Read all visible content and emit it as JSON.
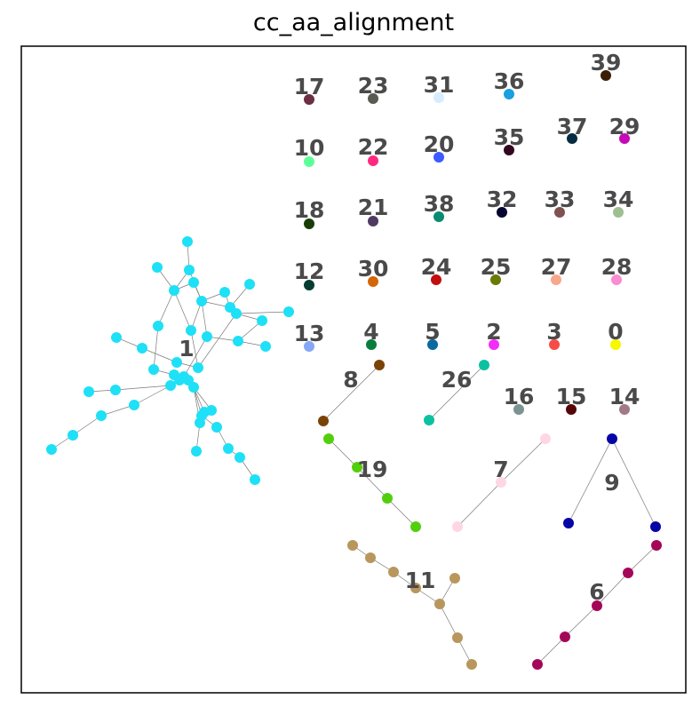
{
  "title": "cc_aa_alignment",
  "components": [
    {
      "label": "1",
      "color": "#1ee0f6"
    },
    {
      "label": "17",
      "color": "#6c2f45"
    },
    {
      "label": "23",
      "color": "#5a5a52"
    },
    {
      "label": "31",
      "color": "#d6ecff"
    },
    {
      "label": "36",
      "color": "#1a9fe0"
    },
    {
      "label": "39",
      "color": "#3a1f06"
    },
    {
      "label": "10",
      "color": "#5cff97"
    },
    {
      "label": "22",
      "color": "#ff2a7f"
    },
    {
      "label": "20",
      "color": "#3c5cff"
    },
    {
      "label": "35",
      "color": "#33071e"
    },
    {
      "label": "37",
      "color": "#062c43"
    },
    {
      "label": "29",
      "color": "#c509b8"
    },
    {
      "label": "18",
      "color": "#193d06"
    },
    {
      "label": "21",
      "color": "#4f3b61"
    },
    {
      "label": "38",
      "color": "#0b8a72"
    },
    {
      "label": "32",
      "color": "#05052f"
    },
    {
      "label": "33",
      "color": "#7f5151"
    },
    {
      "label": "34",
      "color": "#9ebf92"
    },
    {
      "label": "12",
      "color": "#053d33"
    },
    {
      "label": "30",
      "color": "#d46607"
    },
    {
      "label": "24",
      "color": "#c20e0e"
    },
    {
      "label": "25",
      "color": "#6b7a06"
    },
    {
      "label": "27",
      "color": "#f7a78b"
    },
    {
      "label": "28",
      "color": "#fa8cd1"
    },
    {
      "label": "13",
      "color": "#85a8f5"
    },
    {
      "label": "4",
      "color": "#087d3e"
    },
    {
      "label": "5",
      "color": "#0a69a0"
    },
    {
      "label": "2",
      "color": "#f42cf7"
    },
    {
      "label": "3",
      "color": "#f74c45"
    },
    {
      "label": "0",
      "color": "#f7f700"
    },
    {
      "label": "8",
      "color": "#7a4306"
    },
    {
      "label": "26",
      "color": "#0cc1a1"
    },
    {
      "label": "16",
      "color": "#7b9393"
    },
    {
      "label": "15",
      "color": "#560609"
    },
    {
      "label": "14",
      "color": "#a07a89"
    },
    {
      "label": "19",
      "color": "#52cf0c"
    },
    {
      "label": "7",
      "color": "#ffd6e4"
    },
    {
      "label": "9",
      "color": "#0606a6"
    },
    {
      "label": "11",
      "color": "#b8965c"
    },
    {
      "label": "6",
      "color": "#a50758"
    }
  ]
}
